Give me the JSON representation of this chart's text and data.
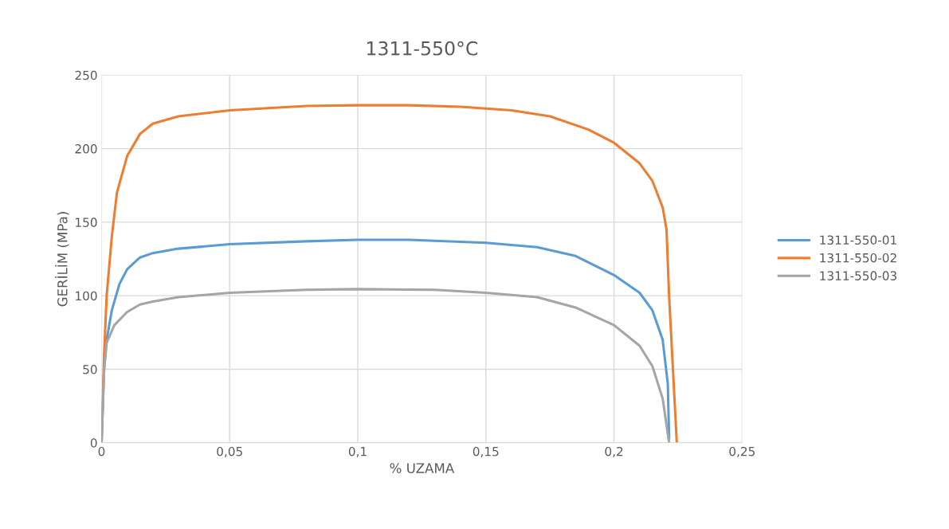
{
  "chart_data": {
    "type": "line",
    "title": "1311-550°C",
    "xlabel": "% UZAMA",
    "ylabel": "GERİLİM (MPa)",
    "xlim": [
      0,
      0.25
    ],
    "xticks": [
      0,
      {
        "value": 0.05,
        "label": "0,05"
      },
      {
        "value": 0.1,
        "label": "0,1"
      },
      {
        "value": 0.15,
        "label": "0,15"
      },
      {
        "value": 0.2,
        "label": "0,2"
      },
      {
        "value": 0.25,
        "label": "0,25"
      }
    ],
    "ylim": [
      0,
      250
    ],
    "yticks": [
      0,
      50,
      100,
      150,
      200,
      250
    ],
    "grid": true,
    "legend": "right",
    "marker": "none",
    "line_style": "solid",
    "series": [
      {
        "name": "1311-550-01",
        "color": "#5b9bd5",
        "x": [
          0,
          0.001,
          0.002,
          0.004,
          0.007,
          0.01,
          0.015,
          0.02,
          0.03,
          0.05,
          0.08,
          0.1,
          0.12,
          0.15,
          0.17,
          0.185,
          0.2,
          0.21,
          0.215,
          0.219,
          0.221,
          0.2215
        ],
        "values": [
          0,
          50,
          70,
          90,
          108,
          118,
          126,
          129,
          132,
          135,
          137,
          138,
          138,
          136,
          133,
          127,
          114,
          102,
          90,
          70,
          40,
          3
        ]
      },
      {
        "name": "1311-550-02",
        "color": "#ed7d31",
        "x": [
          0,
          0.001,
          0.002,
          0.004,
          0.006,
          0.01,
          0.015,
          0.02,
          0.03,
          0.05,
          0.08,
          0.1,
          0.12,
          0.14,
          0.16,
          0.175,
          0.19,
          0.2,
          0.21,
          0.215,
          0.219,
          0.2205,
          0.2215,
          0.223,
          0.2245
        ],
        "values": [
          0,
          60,
          100,
          140,
          170,
          195,
          210,
          217,
          222,
          226,
          229,
          229.5,
          229.5,
          228.5,
          226,
          222,
          213,
          204,
          190,
          178,
          160,
          145,
          100,
          50,
          0
        ]
      },
      {
        "name": "1311-550-03",
        "color": "#a5a5a5",
        "x": [
          0,
          0.001,
          0.002,
          0.005,
          0.01,
          0.015,
          0.02,
          0.03,
          0.05,
          0.08,
          0.1,
          0.13,
          0.15,
          0.17,
          0.185,
          0.2,
          0.21,
          0.215,
          0.219,
          0.2215
        ],
        "values": [
          0,
          50,
          68,
          80,
          89,
          94,
          96,
          99,
          102,
          104,
          104.5,
          104,
          102,
          99,
          92,
          80,
          66,
          52,
          30,
          0
        ]
      }
    ]
  }
}
